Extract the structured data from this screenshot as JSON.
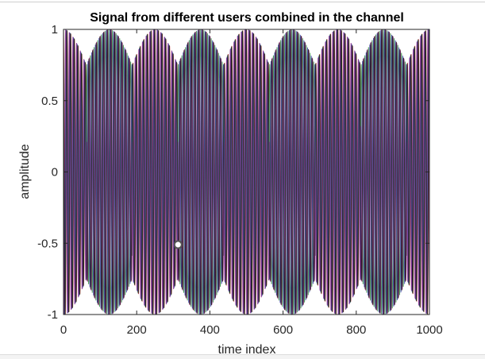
{
  "chart_data": {
    "type": "line",
    "title": "Signal from different users combined in the channel",
    "xlabel": "time index",
    "ylabel": "amplitude",
    "xlim": [
      0,
      1000
    ],
    "ylim": [
      -1,
      1
    ],
    "xticks": [
      0,
      200,
      400,
      600,
      800,
      1000
    ],
    "yticks": [
      -1,
      -0.5,
      0,
      0.5,
      1
    ],
    "xtick_labels": [
      "0",
      "200",
      "400",
      "600",
      "800",
      "1000"
    ],
    "ytick_labels": [
      "-1",
      "-0.5",
      "0",
      "0.5",
      "1"
    ],
    "grid": false,
    "legend": "none",
    "series": [
      {
        "color": "#c0282d",
        "carrier_cycles": 100,
        "envelope_cycles": 4,
        "phase": 0.0
      },
      {
        "color": "#2a8a3a",
        "carrier_cycles": 100,
        "envelope_cycles": 4,
        "phase": 0.9
      },
      {
        "color": "#3a3aa8",
        "carrier_cycles": 100,
        "envelope_cycles": 4,
        "phase": 1.8
      },
      {
        "color": "#8a2a8a",
        "carrier_cycles": 100,
        "envelope_cycles": 4,
        "phase": 2.7
      },
      {
        "color": "#1a1a1a",
        "carrier_cycles": 100,
        "envelope_cycles": 4,
        "phase": 0.45
      }
    ],
    "highlight_point": {
      "x": 313,
      "y": -0.51
    }
  }
}
